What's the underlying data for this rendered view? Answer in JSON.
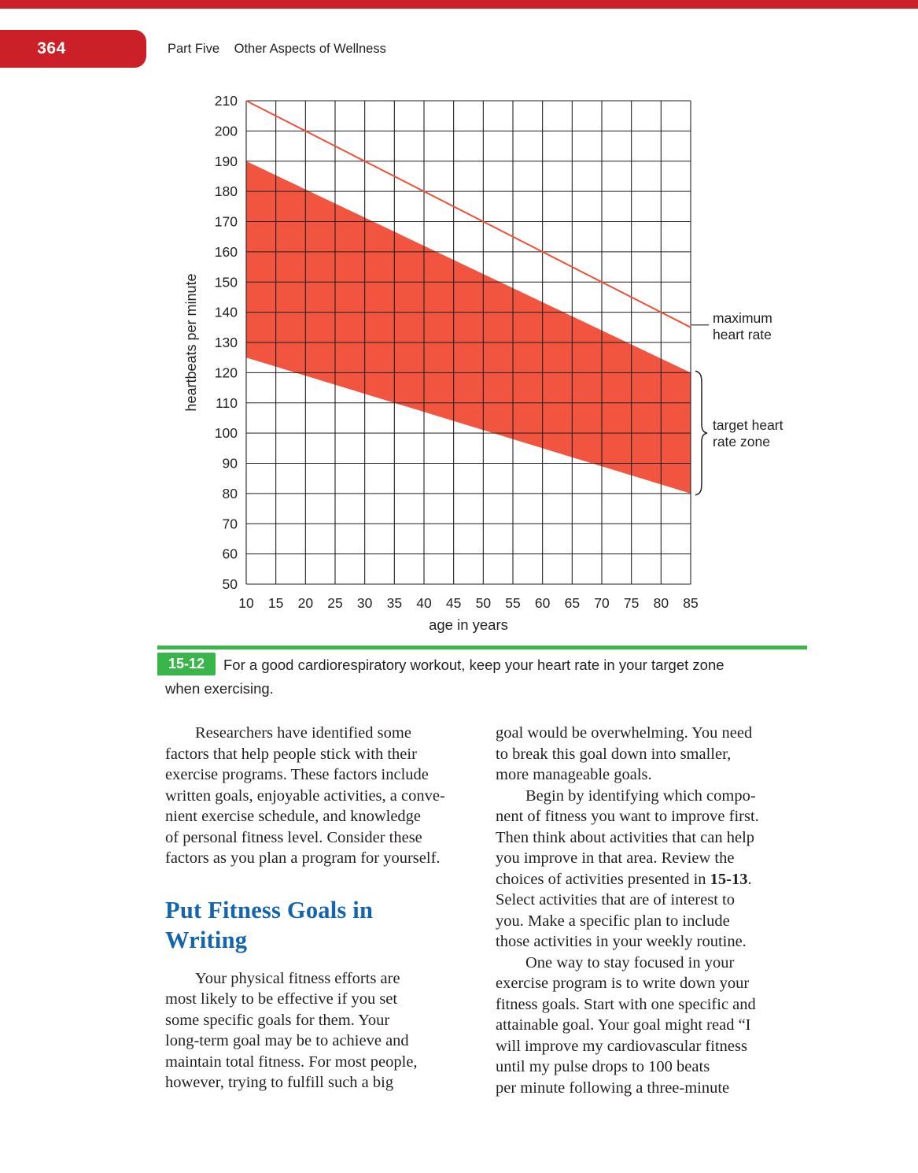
{
  "page": {
    "number": "364",
    "part_label": "Part Five",
    "part_title": "Other Aspects of Wellness"
  },
  "colors": {
    "accent_red": "#cb2027",
    "zone_fill": "#f15540",
    "max_line_red": "#f04f38",
    "green": "#3ab54a",
    "heading_blue": "#1565ae",
    "text": "#231f20",
    "grid": "#231f20"
  },
  "chart_data": {
    "type": "area",
    "title": "",
    "xlabel": "age in years",
    "ylabel": "heartbeats per minute",
    "xlim": [
      10,
      85
    ],
    "ylim": [
      50,
      210
    ],
    "x_ticks": [
      10,
      15,
      20,
      25,
      30,
      35,
      40,
      45,
      50,
      55,
      60,
      65,
      70,
      75,
      80,
      85
    ],
    "y_ticks": [
      50,
      60,
      70,
      80,
      90,
      100,
      110,
      120,
      130,
      140,
      150,
      160,
      170,
      180,
      190,
      200,
      210
    ],
    "grid": true,
    "legend_position": "right-annotations",
    "series": [
      {
        "name": "maximum heart rate",
        "type": "line",
        "x": [
          10,
          85
        ],
        "y": [
          210,
          135
        ]
      },
      {
        "name": "target heart rate zone",
        "type": "band",
        "x": [
          10,
          85
        ],
        "y_upper": [
          190,
          120
        ],
        "y_lower": [
          125,
          80
        ]
      }
    ],
    "annotations": [
      {
        "id": "max-hr-label",
        "lines": [
          "maximum",
          "heart rate"
        ]
      },
      {
        "id": "target-zone-label",
        "lines": [
          "target heart",
          "rate zone"
        ]
      }
    ]
  },
  "figure": {
    "number": "15-12",
    "caption_line1": "For a good cardiorespiratory workout, keep your heart rate in your target zone",
    "caption_line2": "when exercising."
  },
  "article": {
    "left_column": [
      {
        "type": "paragraph",
        "indent": true,
        "lines": [
          "Researchers have identified some",
          "factors that help people stick with their",
          "exercise programs. These factors include",
          "written goals, enjoyable activities, a conve-",
          "nient exercise schedule, and knowledge",
          "of personal fitness level. Consider these",
          "factors as you plan a program for yourself."
        ]
      },
      {
        "type": "heading",
        "indent": false,
        "lines": [
          "Put Fitness Goals in",
          "Writing"
        ]
      },
      {
        "type": "paragraph",
        "indent": true,
        "lines": [
          "Your physical fitness efforts are",
          "most likely to be effective if you set",
          "some specific goals for them. Your",
          "long-term goal may be to achieve and",
          "maintain total fitness. For most people,",
          "however, trying to fulfill such a big"
        ]
      }
    ],
    "right_column": [
      {
        "type": "paragraph",
        "indent": false,
        "lines": [
          "goal would be overwhelming. You need",
          "to break this goal down into smaller,",
          "more manageable goals."
        ]
      },
      {
        "type": "paragraph",
        "indent": true,
        "lines": [
          "Begin by identifying which compo-",
          "nent of fitness you want to improve first.",
          "Then think about activities that can help",
          "you improve in that area. Review the",
          "choices of activities presented in **15-13**.",
          "Select activities that are of interest to",
          "you. Make a specific plan to include",
          "those activities in your weekly routine."
        ]
      },
      {
        "type": "paragraph",
        "indent": true,
        "lines": [
          "One way to stay focused in your",
          "exercise program is to write down your",
          "fitness goals. Start with one specific and",
          "attainable goal. Your goal might read “I",
          "will improve my cardiovascular fitness",
          "until my pulse drops to 100 beats",
          "per minute following a three-minute"
        ]
      }
    ]
  }
}
